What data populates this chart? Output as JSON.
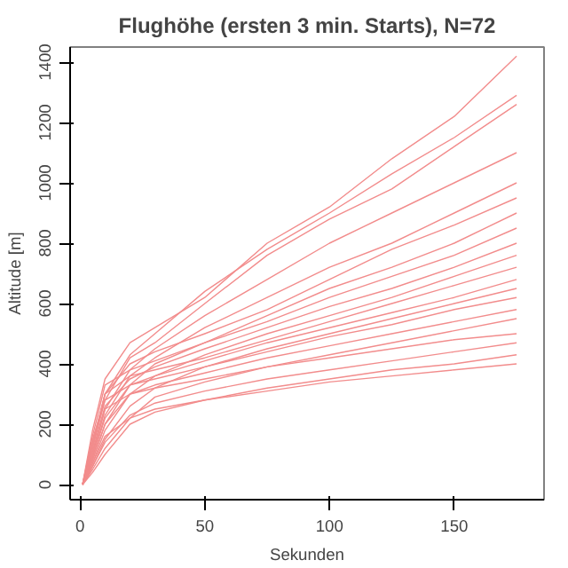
{
  "chart_data": {
    "type": "line",
    "title": "Flughöhe (ersten 3 min. Starts), N=72",
    "xlabel": "Sekunden",
    "ylabel": "Altitude [m]",
    "x": [
      1,
      5,
      10,
      20,
      30,
      50,
      75,
      100,
      125,
      150,
      175
    ],
    "xlim": [
      -4,
      186
    ],
    "ylim": [
      -50,
      1450
    ],
    "xticks": [
      0,
      50,
      100,
      150
    ],
    "yticks": [
      0,
      200,
      400,
      600,
      800,
      1000,
      1200,
      1400
    ],
    "grid": false,
    "series": [
      {
        "color": "#f28c8c",
        "values": [
          0,
          180,
          350,
          470,
          520,
          620,
          800,
          920,
          1080,
          1220,
          1420
        ]
      },
      {
        "color": "#f28c8c",
        "values": [
          0,
          120,
          300,
          430,
          500,
          640,
          780,
          900,
          1030,
          1150,
          1290
        ]
      },
      {
        "color": "#f28c8c",
        "values": [
          0,
          150,
          280,
          420,
          470,
          600,
          760,
          880,
          980,
          1120,
          1260
        ]
      },
      {
        "color": "#f28c8c",
        "values": [
          0,
          100,
          250,
          380,
          450,
          560,
          680,
          800,
          900,
          1000,
          1100
        ]
      },
      {
        "color": "#f28c8c",
        "values": [
          0,
          90,
          230,
          360,
          420,
          520,
          620,
          720,
          800,
          900,
          1000
        ]
      },
      {
        "color": "#f28c8c",
        "values": [
          0,
          130,
          300,
          400,
          440,
          500,
          580,
          680,
          780,
          860,
          950
        ]
      },
      {
        "color": "#f28c8c",
        "values": [
          0,
          80,
          200,
          330,
          400,
          470,
          560,
          650,
          720,
          800,
          900
        ]
      },
      {
        "color": "#f28c8c",
        "values": [
          0,
          160,
          330,
          380,
          410,
          470,
          540,
          620,
          690,
          760,
          850
        ]
      },
      {
        "color": "#f28c8c",
        "values": [
          0,
          110,
          260,
          350,
          390,
          450,
          520,
          590,
          650,
          720,
          800
        ]
      },
      {
        "color": "#f28c8c",
        "values": [
          0,
          70,
          180,
          300,
          360,
          430,
          500,
          560,
          620,
          690,
          760
        ]
      },
      {
        "color": "#f28c8c",
        "values": [
          0,
          140,
          300,
          360,
          380,
          420,
          480,
          540,
          600,
          660,
          720
        ]
      },
      {
        "color": "#f28c8c",
        "values": [
          0,
          90,
          220,
          330,
          360,
          410,
          470,
          520,
          570,
          620,
          680
        ]
      },
      {
        "color": "#f28c8c",
        "values": [
          0,
          60,
          150,
          260,
          320,
          390,
          450,
          500,
          550,
          600,
          650
        ]
      },
      {
        "color": "#f28c8c",
        "values": [
          0,
          120,
          280,
          330,
          350,
          390,
          440,
          490,
          530,
          580,
          620
        ]
      },
      {
        "color": "#f28c8c",
        "values": [
          0,
          80,
          200,
          300,
          330,
          370,
          420,
          460,
          500,
          540,
          580
        ]
      },
      {
        "color": "#f28c8c",
        "values": [
          0,
          50,
          120,
          220,
          290,
          340,
          390,
          430,
          470,
          510,
          550
        ]
      },
      {
        "color": "#f28c8c",
        "values": [
          0,
          100,
          250,
          300,
          320,
          350,
          390,
          420,
          450,
          480,
          500
        ]
      },
      {
        "color": "#f28c8c",
        "values": [
          0,
          60,
          140,
          230,
          270,
          310,
          350,
          380,
          410,
          440,
          470
        ]
      },
      {
        "color": "#f28c8c",
        "values": [
          0,
          40,
          100,
          200,
          240,
          280,
          320,
          350,
          380,
          400,
          430
        ]
      },
      {
        "color": "#f28c8c",
        "values": [
          0,
          70,
          160,
          220,
          250,
          280,
          310,
          340,
          360,
          380,
          400
        ]
      }
    ]
  }
}
